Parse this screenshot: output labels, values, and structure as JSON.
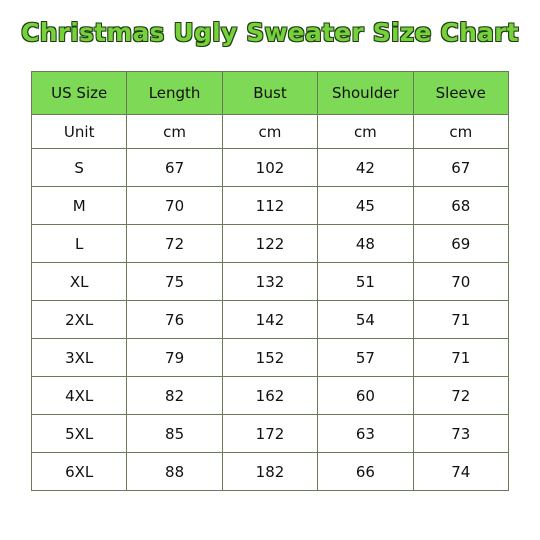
{
  "title": "Christmas Ugly Sweater Size Chart",
  "colors": {
    "header_bg": "#7ed957",
    "title_fill": "#76d13a",
    "title_outline": "#1e3d14",
    "grid": "#6b7a56"
  },
  "table": {
    "headers": [
      "US Size",
      "Length",
      "Bust",
      "Shoulder",
      "Sleeve"
    ],
    "unit_row": [
      "Unit",
      "cm",
      "cm",
      "cm",
      "cm"
    ],
    "rows": [
      [
        "S",
        "67",
        "102",
        "42",
        "67"
      ],
      [
        "M",
        "70",
        "112",
        "45",
        "68"
      ],
      [
        "L",
        "72",
        "122",
        "48",
        "69"
      ],
      [
        "XL",
        "75",
        "132",
        "51",
        "70"
      ],
      [
        "2XL",
        "76",
        "142",
        "54",
        "71"
      ],
      [
        "3XL",
        "79",
        "152",
        "57",
        "71"
      ],
      [
        "4XL",
        "82",
        "162",
        "60",
        "72"
      ],
      [
        "5XL",
        "85",
        "172",
        "63",
        "73"
      ],
      [
        "6XL",
        "88",
        "182",
        "66",
        "74"
      ]
    ]
  }
}
